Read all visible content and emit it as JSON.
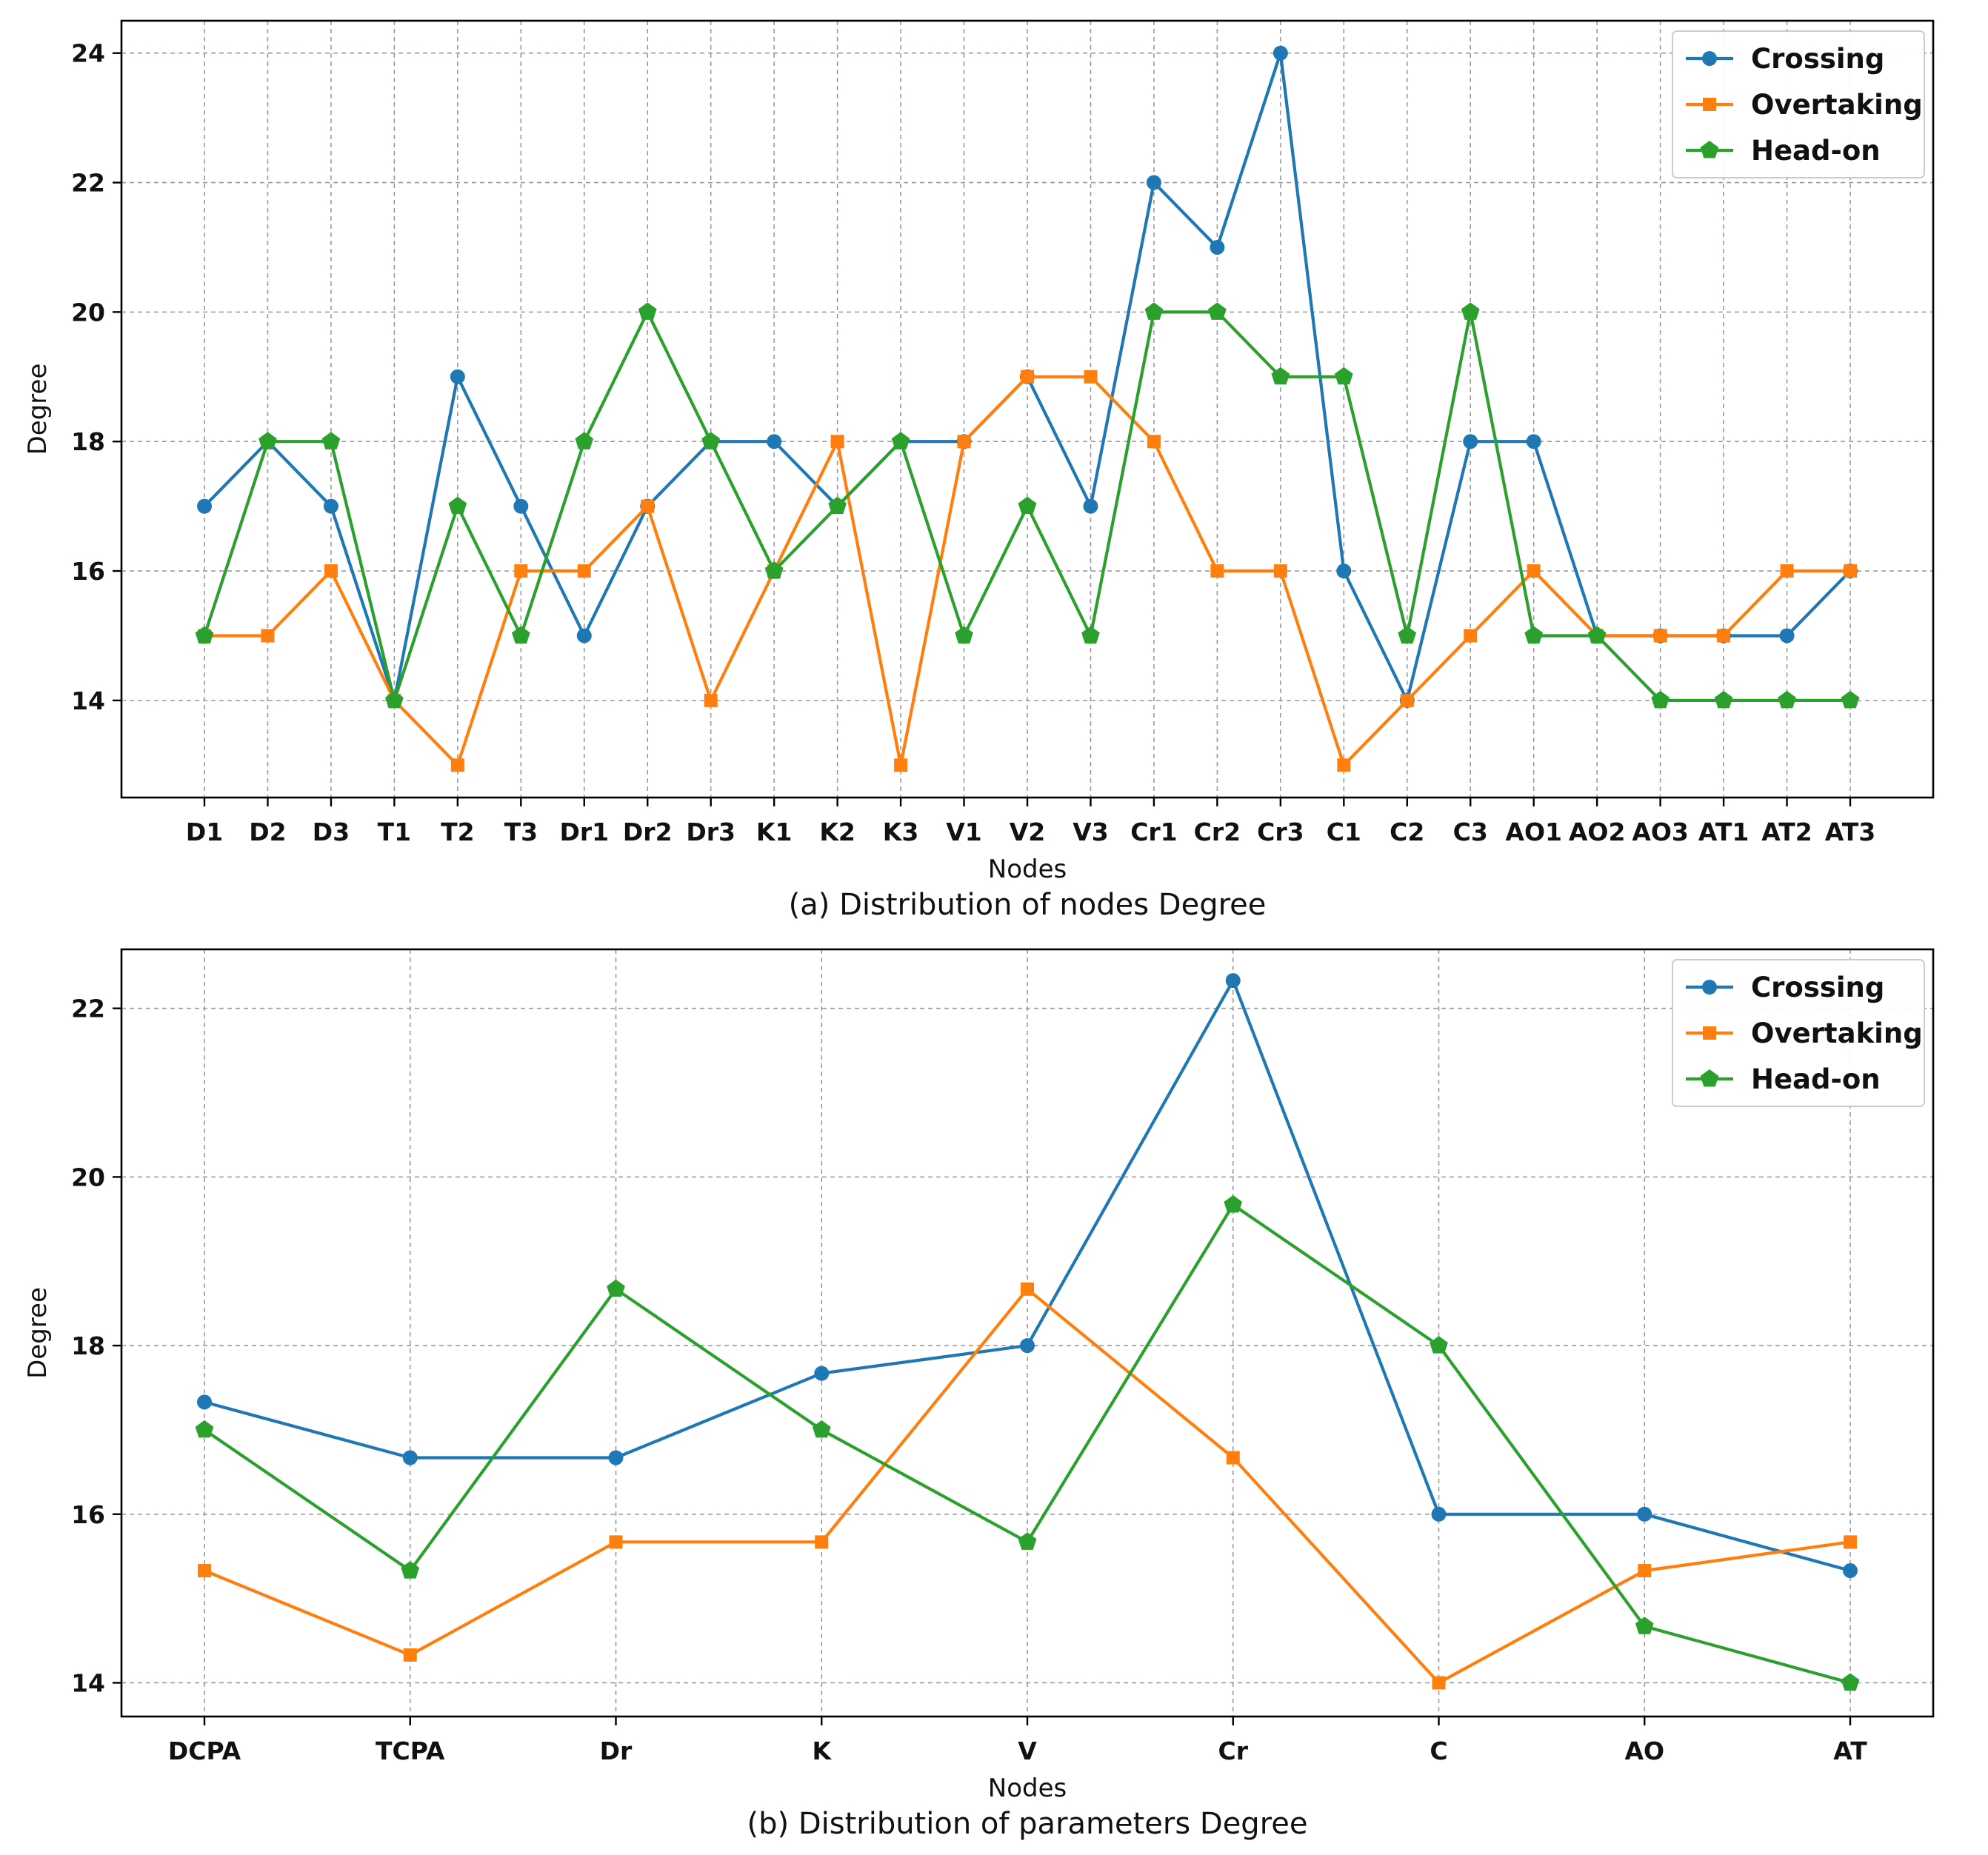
{
  "figure": {
    "colors": {
      "crossing": "#1f77b4",
      "overtaking": "#ff7f0e",
      "headon": "#2ca02c"
    }
  },
  "chart_data": [
    {
      "type": "line",
      "caption": "(a) Distribution of nodes Degree",
      "xlabel": "Nodes",
      "ylabel": "Degree",
      "ylim": [
        12.5,
        24.5
      ],
      "yticks": [
        14,
        16,
        18,
        20,
        22,
        24
      ],
      "grid": true,
      "legend_position": "top-right",
      "categories": [
        "D1",
        "D2",
        "D3",
        "T1",
        "T2",
        "T3",
        "Dr1",
        "Dr2",
        "Dr3",
        "K1",
        "K2",
        "K3",
        "V1",
        "V2",
        "V3",
        "Cr1",
        "Cr2",
        "Cr3",
        "C1",
        "C2",
        "C3",
        "AO1",
        "AO2",
        "AO3",
        "AT1",
        "AT2",
        "AT3"
      ],
      "series": [
        {
          "name": "Crossing",
          "marker": "circle",
          "values": [
            17,
            18,
            17,
            14,
            19,
            17,
            15,
            17,
            18,
            18,
            17,
            18,
            18,
            19,
            17,
            22,
            21,
            24,
            16,
            14,
            18,
            18,
            15,
            15,
            15,
            15,
            16
          ]
        },
        {
          "name": "Overtaking",
          "marker": "square",
          "values": [
            15,
            15,
            16,
            14,
            13,
            16,
            16,
            17,
            14,
            16,
            18,
            13,
            18,
            19,
            19,
            18,
            16,
            16,
            13,
            14,
            15,
            16,
            15,
            15,
            15,
            16,
            16
          ]
        },
        {
          "name": "Head-on",
          "marker": "pentagon",
          "values": [
            15,
            18,
            18,
            14,
            17,
            15,
            18,
            20,
            18,
            16,
            17,
            18,
            15,
            17,
            15,
            20,
            20,
            19,
            19,
            15,
            20,
            15,
            15,
            14,
            14,
            14,
            14
          ]
        }
      ]
    },
    {
      "type": "line",
      "caption": "(b) Distribution of parameters Degree",
      "xlabel": "Nodes",
      "ylabel": "Degree",
      "ylim": [
        13.6,
        22.7
      ],
      "yticks": [
        14,
        16,
        18,
        20,
        22
      ],
      "grid": true,
      "legend_position": "top-right",
      "categories": [
        "DCPA",
        "TCPA",
        "Dr",
        "K",
        "V",
        "Cr",
        "C",
        "AO",
        "AT"
      ],
      "series": [
        {
          "name": "Crossing",
          "marker": "circle",
          "values": [
            17.33,
            16.67,
            16.67,
            17.67,
            18,
            22.33,
            16,
            16,
            15.33
          ]
        },
        {
          "name": "Overtaking",
          "marker": "square",
          "values": [
            15.33,
            14.33,
            15.67,
            15.67,
            18.67,
            16.67,
            14,
            15.33,
            15.67
          ]
        },
        {
          "name": "Head-on",
          "marker": "pentagon",
          "values": [
            17,
            15.33,
            18.67,
            17,
            15.67,
            19.67,
            18,
            14.67,
            14
          ]
        }
      ]
    }
  ]
}
